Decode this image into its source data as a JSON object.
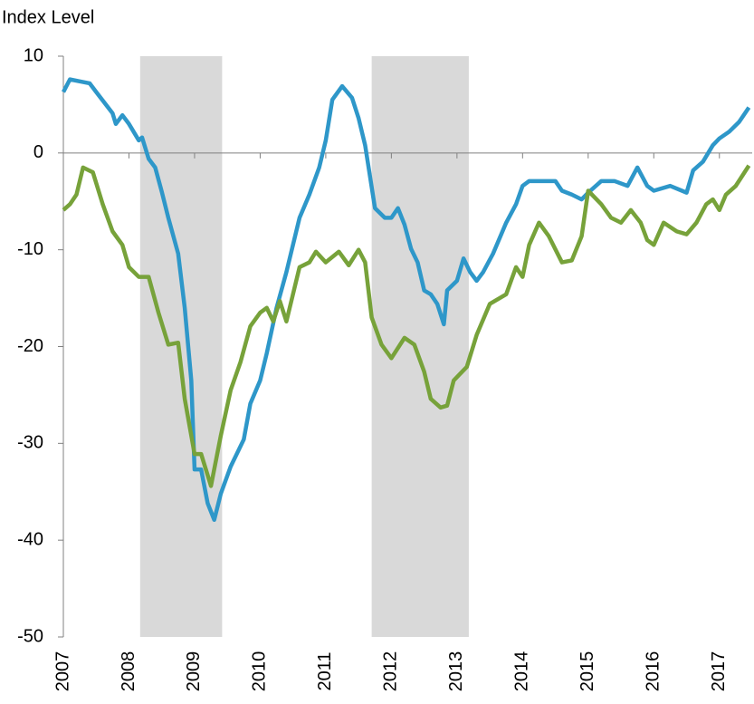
{
  "chart_data": {
    "type": "line",
    "title": "Index Level",
    "xlim": [
      2007,
      2017.5
    ],
    "xticks": [
      2007,
      2008,
      2009,
      2010,
      2011,
      2012,
      2013,
      2014,
      2015,
      2016,
      2017
    ],
    "ylim": [
      -50,
      10
    ],
    "yticks": [
      10,
      0,
      -10,
      -20,
      -30,
      -40,
      -50
    ],
    "shaded": [
      [
        2008.17,
        2009.42
      ],
      [
        2011.7,
        2013.18
      ]
    ],
    "shade_color": "#d9d9d9",
    "series": [
      {
        "color": "#2e97c9",
        "x": [
          2007.0,
          2007.1,
          2007.25,
          2007.4,
          2007.5,
          2007.75,
          2007.8,
          2007.9,
          2008.0,
          2008.15,
          2008.2,
          2008.3,
          2008.4,
          2008.5,
          2008.6,
          2008.75,
          2008.85,
          2008.95,
          2009.0,
          2009.1,
          2009.2,
          2009.3,
          2009.4,
          2009.55,
          2009.75,
          2009.85,
          2010.0,
          2010.1,
          2010.25,
          2010.4,
          2010.5,
          2010.6,
          2010.75,
          2010.9,
          2011.0,
          2011.1,
          2011.25,
          2011.4,
          2011.5,
          2011.6,
          2011.75,
          2011.9,
          2012.0,
          2012.1,
          2012.2,
          2012.3,
          2012.4,
          2012.5,
          2012.6,
          2012.7,
          2012.8,
          2012.85,
          2013.0,
          2013.1,
          2013.2,
          2013.3,
          2013.4,
          2013.55,
          2013.75,
          2013.9,
          2014.0,
          2014.1,
          2014.25,
          2014.5,
          2014.6,
          2014.75,
          2014.9,
          2015.0,
          2015.2,
          2015.4,
          2015.6,
          2015.75,
          2015.9,
          2016.0,
          2016.25,
          2016.5,
          2016.6,
          2016.75,
          2016.9,
          2017.0,
          2017.15,
          2017.3,
          2017.45
        ],
        "values": [
          6.3,
          7.6,
          7.4,
          7.2,
          6.3,
          4.1,
          3.0,
          3.9,
          3.0,
          1.3,
          1.6,
          -0.6,
          -1.5,
          -4,
          -6.7,
          -10.4,
          -16,
          -23.5,
          -32.7,
          -32.7,
          -36.2,
          -37.9,
          -35.2,
          -32.4,
          -29.6,
          -25.9,
          -23.5,
          -20.7,
          -16,
          -12.3,
          -9.5,
          -6.7,
          -4.3,
          -1.5,
          1.3,
          5.5,
          6.9,
          5.7,
          3.6,
          0.8,
          -5.7,
          -6.7,
          -6.7,
          -5.7,
          -7.4,
          -9.9,
          -11.3,
          -14.2,
          -14.6,
          -15.6,
          -17.7,
          -14.2,
          -13.2,
          -10.9,
          -12.3,
          -13.2,
          -12.3,
          -10.4,
          -7.2,
          -5.3,
          -3.4,
          -2.9,
          -2.9,
          -2.9,
          -3.9,
          -4.3,
          -4.8,
          -4.1,
          -2.9,
          -2.9,
          -3.4,
          -1.5,
          -3.4,
          -3.9,
          -3.4,
          -4.1,
          -1.8,
          -0.9,
          0.8,
          1.5,
          2.2,
          3.2,
          4.7
        ]
      },
      {
        "color": "#77a23a",
        "x": [
          2007.0,
          2007.1,
          2007.2,
          2007.3,
          2007.45,
          2007.6,
          2007.75,
          2007.9,
          2008.0,
          2008.15,
          2008.3,
          2008.45,
          2008.6,
          2008.75,
          2008.85,
          2009.0,
          2009.1,
          2009.25,
          2009.4,
          2009.55,
          2009.7,
          2009.85,
          2010.0,
          2010.1,
          2010.2,
          2010.3,
          2010.4,
          2010.6,
          2010.75,
          2010.85,
          2011.0,
          2011.2,
          2011.35,
          2011.5,
          2011.6,
          2011.7,
          2011.85,
          2012.0,
          2012.2,
          2012.35,
          2012.5,
          2012.6,
          2012.75,
          2012.85,
          2012.95,
          2013.15,
          2013.3,
          2013.5,
          2013.75,
          2013.9,
          2014.0,
          2014.1,
          2014.25,
          2014.4,
          2014.6,
          2014.75,
          2014.9,
          2015.0,
          2015.2,
          2015.35,
          2015.5,
          2015.65,
          2015.8,
          2015.9,
          2016.0,
          2016.15,
          2016.35,
          2016.5,
          2016.65,
          2016.8,
          2016.9,
          2017.0,
          2017.1,
          2017.25,
          2017.45
        ],
        "values": [
          -5.9,
          -5.3,
          -4.3,
          -1.5,
          -2.0,
          -5.3,
          -8.1,
          -9.5,
          -11.8,
          -12.8,
          -12.8,
          -16.5,
          -19.8,
          -19.6,
          -25.4,
          -31.1,
          -31.1,
          -34.4,
          -29.2,
          -24.5,
          -21.6,
          -17.9,
          -16.5,
          -16,
          -17.4,
          -15.3,
          -17.4,
          -11.8,
          -11.3,
          -10.2,
          -11.3,
          -10.2,
          -11.6,
          -10,
          -11.3,
          -17,
          -19.8,
          -21.2,
          -19.1,
          -19.8,
          -22.6,
          -25.4,
          -26.3,
          -26.1,
          -23.5,
          -22.1,
          -18.8,
          -15.6,
          -14.6,
          -11.8,
          -12.8,
          -9.5,
          -7.2,
          -8.6,
          -11.3,
          -11.1,
          -8.6,
          -3.9,
          -5.3,
          -6.7,
          -7.2,
          -5.9,
          -7.2,
          -9.0,
          -9.5,
          -7.2,
          -8.1,
          -8.4,
          -7.2,
          -5.3,
          -4.8,
          -5.9,
          -4.3,
          -3.4,
          -1.3
        ]
      }
    ]
  }
}
